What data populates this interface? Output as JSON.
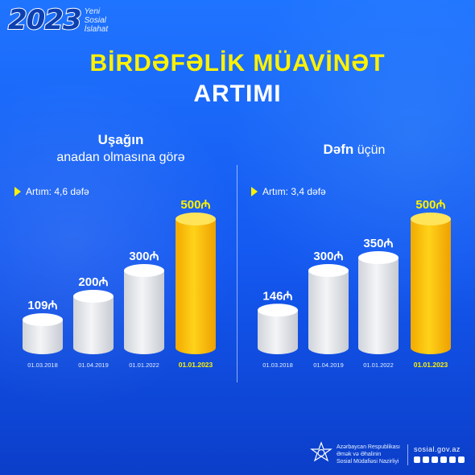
{
  "brand": {
    "year": "2023",
    "words": [
      "Yeni",
      "Sosial",
      "İslahat"
    ]
  },
  "title": {
    "line1": "BİRDƏFƏLİK MÜAVİNƏT",
    "line2": "ARTIMI"
  },
  "colors": {
    "background": "#1458f0",
    "accent": "#fff200",
    "bar_default": "#e6e6e6",
    "bar_highlight": "#ffbf00"
  },
  "chart_data": [
    {
      "type": "bar",
      "title_bold": "Uşağın",
      "title_rest": "anadan olmasına görə",
      "note": "Artım: 4,6 dəfə",
      "categories": [
        "01.03.2018",
        "01.04.2019",
        "01.01.2022",
        "01.01.2023"
      ],
      "values": [
        109,
        200,
        300,
        500
      ],
      "value_labels": [
        "109₼",
        "200₼",
        "300₼",
        "500₼"
      ],
      "highlight_index": 3,
      "ylim": [
        0,
        500
      ]
    },
    {
      "type": "bar",
      "title_bold": "Dəfn",
      "title_rest": " üçün",
      "note": "Artım: 3,4 dəfə",
      "categories": [
        "01.03.2018",
        "01.04.2019",
        "01.01.2022",
        "01.01.2023"
      ],
      "values": [
        146,
        300,
        350,
        500
      ],
      "value_labels": [
        "146₼",
        "300₼",
        "350₼",
        "500₼"
      ],
      "highlight_index": 3,
      "ylim": [
        0,
        500
      ]
    }
  ],
  "footer": {
    "org_lines": [
      "Azərbaycan Respublikası",
      "Əmək və Əhalinin",
      "Sosial Müdafiəsi Nazirliyi"
    ],
    "website": "sosial.gov.az",
    "social_icons": [
      "facebook-icon",
      "instagram-icon",
      "telegram-icon",
      "twitter-icon",
      "youtube-icon",
      "linkedin-icon"
    ]
  }
}
